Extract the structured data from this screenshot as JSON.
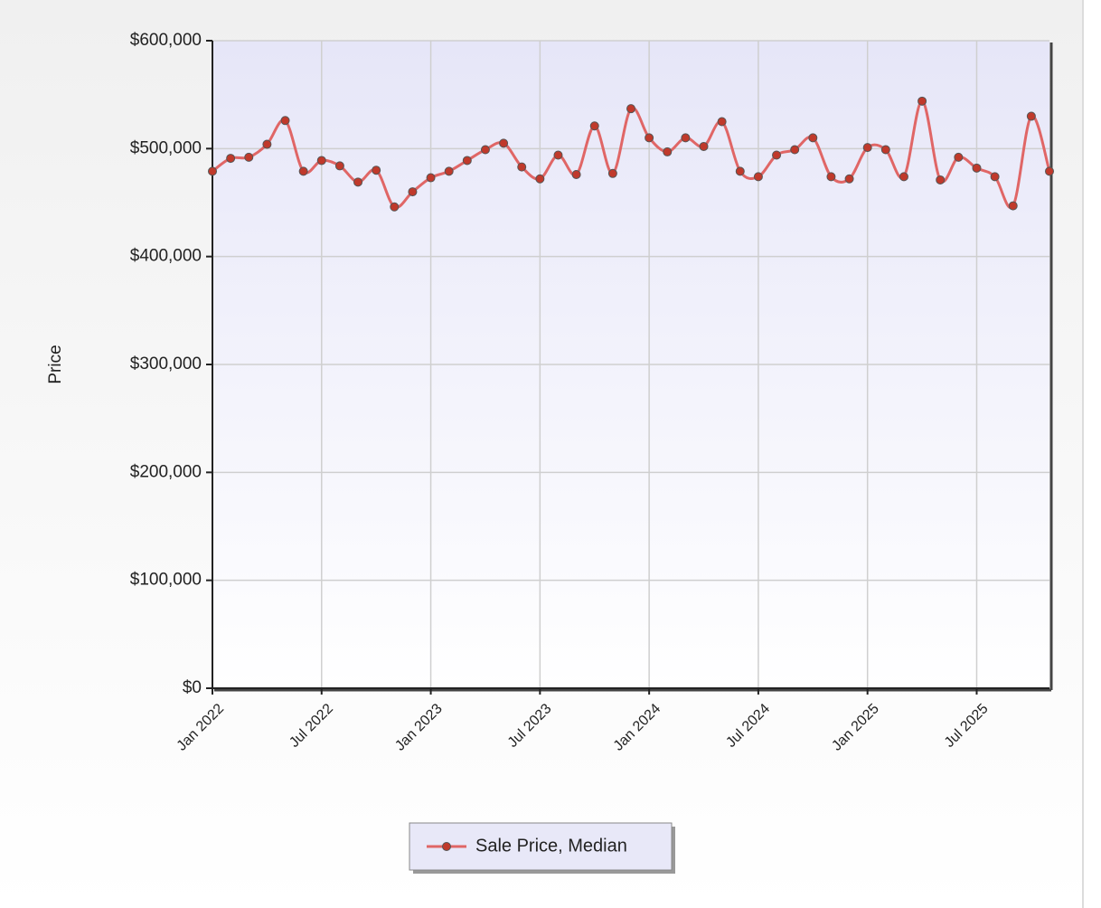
{
  "chart_data": {
    "type": "line",
    "y_label": "Price",
    "x": [
      "2022-01",
      "2022-02",
      "2022-03",
      "2022-04",
      "2022-05",
      "2022-06",
      "2022-07",
      "2022-08",
      "2022-09",
      "2022-10",
      "2022-11",
      "2022-12",
      "2023-01",
      "2023-02",
      "2023-03",
      "2023-04",
      "2023-05",
      "2023-06",
      "2023-07",
      "2023-08",
      "2023-09",
      "2023-10",
      "2023-11",
      "2023-12",
      "2024-01",
      "2024-02",
      "2024-03",
      "2024-04",
      "2024-05",
      "2024-06",
      "2024-07",
      "2024-08",
      "2024-09",
      "2024-10",
      "2024-11",
      "2024-12",
      "2025-01",
      "2025-02",
      "2025-03",
      "2025-04",
      "2025-05",
      "2025-06",
      "2025-07",
      "2025-08",
      "2025-09",
      "2025-10",
      "2025-11"
    ],
    "series": [
      {
        "name": "Sale Price, Median",
        "color": "#e06666",
        "marker_color": "#c0392b",
        "values": [
          479000,
          491000,
          492000,
          504000,
          526000,
          479000,
          489000,
          484000,
          469000,
          480000,
          446000,
          460000,
          473000,
          479000,
          489000,
          499000,
          505000,
          483000,
          472000,
          494000,
          476000,
          521000,
          477000,
          537000,
          510000,
          497000,
          510000,
          502000,
          525000,
          479000,
          474000,
          494000,
          499000,
          510000,
          474000,
          472000,
          501000,
          499000,
          474000,
          544000,
          471000,
          492000,
          482000,
          474000,
          447000,
          530000,
          479000
        ]
      }
    ],
    "xlim": [
      "2022-01",
      "2025-11"
    ],
    "xticks": [
      {
        "value": "2022-01",
        "label": "Jan 2022"
      },
      {
        "value": "2022-07",
        "label": "Jul 2022"
      },
      {
        "value": "2023-01",
        "label": "Jan 2023"
      },
      {
        "value": "2023-07",
        "label": "Jul 2023"
      },
      {
        "value": "2024-01",
        "label": "Jan 2024"
      },
      {
        "value": "2024-07",
        "label": "Jul 2024"
      },
      {
        "value": "2025-01",
        "label": "Jan 2025"
      },
      {
        "value": "2025-07",
        "label": "Jul 2025"
      }
    ],
    "ylim": [
      0,
      600000
    ],
    "yticks": [
      {
        "value": 0,
        "label": "$0"
      },
      {
        "value": 100000,
        "label": "$100,000"
      },
      {
        "value": 200000,
        "label": "$200,000"
      },
      {
        "value": 300000,
        "label": "$300,000"
      },
      {
        "value": 400000,
        "label": "$400,000"
      },
      {
        "value": 500000,
        "label": "$500,000"
      },
      {
        "value": 600000,
        "label": "$600,000"
      }
    ],
    "grid": true,
    "legend": "bottom"
  }
}
